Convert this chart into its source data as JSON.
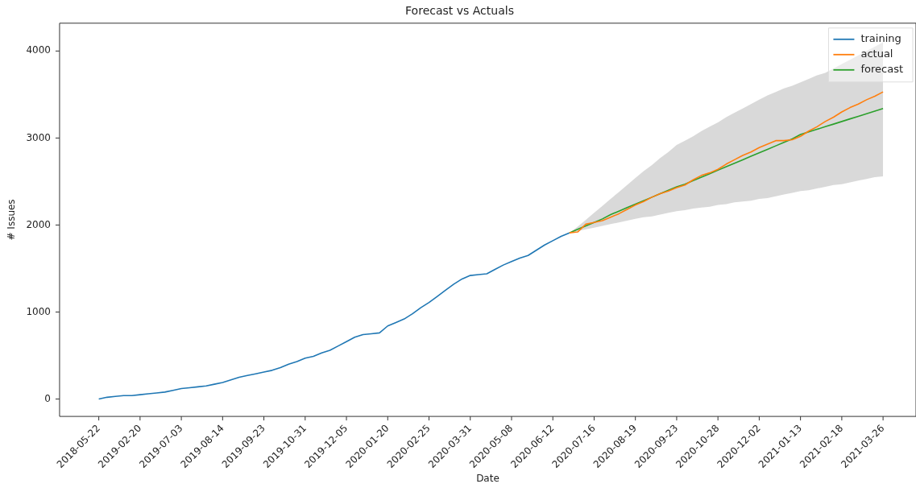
{
  "chart_data": {
    "type": "line",
    "title": "Forecast vs Actuals",
    "xlabel": "Date",
    "ylabel": "# Issues",
    "categories": [
      "2018-05-22",
      null,
      null,
      null,
      null,
      "2019-02-20",
      null,
      null,
      null,
      null,
      "2019-07-03",
      null,
      null,
      null,
      null,
      "2019-08-14",
      null,
      null,
      null,
      null,
      "2019-09-23",
      null,
      null,
      null,
      null,
      "2019-10-31",
      null,
      null,
      null,
      null,
      "2019-12-05",
      null,
      null,
      null,
      null,
      "2020-01-20",
      null,
      null,
      null,
      null,
      "2020-02-25",
      null,
      null,
      null,
      null,
      "2020-03-31",
      null,
      null,
      null,
      null,
      "2020-05-08",
      null,
      null,
      null,
      null,
      "2020-06-12",
      null,
      null,
      null,
      null,
      "2020-07-16",
      null,
      null,
      null,
      null,
      "2020-08-19",
      null,
      null,
      null,
      null,
      "2020-09-23",
      null,
      null,
      null,
      null,
      "2020-10-28",
      null,
      null,
      null,
      null,
      "2020-12-02",
      null,
      null,
      null,
      null,
      "2021-01-13",
      null,
      null,
      null,
      null,
      "2021-02-18",
      null,
      null,
      null,
      null,
      "2021-03-26"
    ],
    "ylim": [
      -200,
      4320
    ],
    "yticks": [
      0,
      1000,
      2000,
      3000,
      4000
    ],
    "grid": false,
    "legend": "top right",
    "marker": "none",
    "line_style": "solid",
    "series": [
      {
        "name": "training",
        "color": "#1f77b4",
        "values": [
          0,
          20,
          30,
          40,
          40,
          50,
          60,
          70,
          80,
          100,
          120,
          130,
          140,
          150,
          170,
          190,
          220,
          250,
          270,
          290,
          310,
          330,
          360,
          400,
          430,
          470,
          490,
          530,
          560,
          610,
          660,
          710,
          740,
          750,
          760,
          840,
          880,
          920,
          980,
          1050,
          1110,
          1180,
          1250,
          1320,
          1380,
          1420,
          1430,
          1440,
          1490,
          1540,
          1580,
          1620,
          1650,
          1710,
          1770,
          1820,
          1870,
          1910,
          null,
          null,
          null,
          null,
          null,
          null,
          null,
          null,
          null,
          null,
          null,
          null,
          null,
          null,
          null,
          null,
          null,
          null,
          null,
          null,
          null,
          null,
          null,
          null,
          null,
          null,
          null,
          null,
          null,
          null,
          null,
          null,
          null,
          null,
          null,
          null,
          null,
          null
        ]
      },
      {
        "name": "actual",
        "color": "#ff7f0e",
        "values": [
          null,
          null,
          null,
          null,
          null,
          null,
          null,
          null,
          null,
          null,
          null,
          null,
          null,
          null,
          null,
          null,
          null,
          null,
          null,
          null,
          null,
          null,
          null,
          null,
          null,
          null,
          null,
          null,
          null,
          null,
          null,
          null,
          null,
          null,
          null,
          null,
          null,
          null,
          null,
          null,
          null,
          null,
          null,
          null,
          null,
          null,
          null,
          null,
          null,
          null,
          null,
          null,
          null,
          null,
          null,
          null,
          null,
          1910,
          1920,
          2010,
          2030,
          2050,
          2090,
          2130,
          2180,
          2230,
          2270,
          2320,
          2360,
          2390,
          2430,
          2460,
          2520,
          2570,
          2600,
          2640,
          2700,
          2750,
          2800,
          2840,
          2890,
          2930,
          2970,
          2970,
          2980,
          3020,
          3080,
          3130,
          3190,
          3240,
          3300,
          3350,
          3390,
          3440,
          3480,
          3530
        ]
      },
      {
        "name": "forecast",
        "color": "#2ca02c",
        "values": [
          null,
          null,
          null,
          null,
          null,
          null,
          null,
          null,
          null,
          null,
          null,
          null,
          null,
          null,
          null,
          null,
          null,
          null,
          null,
          null,
          null,
          null,
          null,
          null,
          null,
          null,
          null,
          null,
          null,
          null,
          null,
          null,
          null,
          null,
          null,
          null,
          null,
          null,
          null,
          null,
          null,
          null,
          null,
          null,
          null,
          null,
          null,
          null,
          null,
          null,
          null,
          null,
          null,
          null,
          null,
          null,
          null,
          1910,
          1950,
          1990,
          2030,
          2070,
          2120,
          2160,
          2200,
          2240,
          2280,
          2320,
          2360,
          2400,
          2440,
          2470,
          2510,
          2550,
          2590,
          2630,
          2670,
          2710,
          2750,
          2790,
          2830,
          2870,
          2910,
          2950,
          2990,
          3040,
          3070,
          3100,
          3130,
          3160,
          3190,
          3220,
          3250,
          3280,
          3310,
          3340
        ],
        "lower": [
          null,
          null,
          null,
          null,
          null,
          null,
          null,
          null,
          null,
          null,
          null,
          null,
          null,
          null,
          null,
          null,
          null,
          null,
          null,
          null,
          null,
          null,
          null,
          null,
          null,
          null,
          null,
          null,
          null,
          null,
          null,
          null,
          null,
          null,
          null,
          null,
          null,
          null,
          null,
          null,
          null,
          null,
          null,
          null,
          null,
          null,
          null,
          null,
          null,
          null,
          null,
          null,
          null,
          null,
          null,
          null,
          null,
          1910,
          1930,
          1950,
          1970,
          1990,
          2010,
          2030,
          2050,
          2070,
          2090,
          2100,
          2120,
          2140,
          2160,
          2170,
          2190,
          2200,
          2210,
          2230,
          2240,
          2260,
          2270,
          2280,
          2300,
          2310,
          2330,
          2350,
          2370,
          2390,
          2400,
          2420,
          2440,
          2460,
          2470,
          2490,
          2510,
          2530,
          2550,
          2560
        ],
        "upper": [
          null,
          null,
          null,
          null,
          null,
          null,
          null,
          null,
          null,
          null,
          null,
          null,
          null,
          null,
          null,
          null,
          null,
          null,
          null,
          null,
          null,
          null,
          null,
          null,
          null,
          null,
          null,
          null,
          null,
          null,
          null,
          null,
          null,
          null,
          null,
          null,
          null,
          null,
          null,
          null,
          null,
          null,
          null,
          null,
          null,
          null,
          null,
          null,
          null,
          null,
          null,
          null,
          null,
          null,
          null,
          null,
          null,
          1910,
          1980,
          2060,
          2140,
          2220,
          2300,
          2380,
          2460,
          2540,
          2620,
          2690,
          2770,
          2840,
          2920,
          2970,
          3020,
          3080,
          3130,
          3180,
          3240,
          3290,
          3340,
          3390,
          3440,
          3490,
          3530,
          3570,
          3600,
          3640,
          3680,
          3720,
          3750,
          3800,
          3850,
          3900,
          3950,
          4000,
          4050,
          4100
        ]
      }
    ]
  }
}
